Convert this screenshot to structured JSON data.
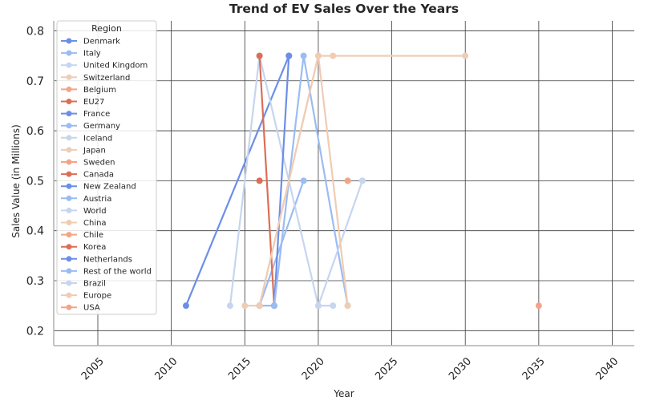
{
  "chart_data": {
    "type": "line",
    "title": "Trend of EV Sales Over the Years",
    "xlabel": "Year",
    "ylabel": "Sales Value (in Millions)",
    "xlim": [
      2002,
      2041.5
    ],
    "ylim": [
      0.17,
      0.82
    ],
    "x_ticks": [
      2005,
      2010,
      2015,
      2020,
      2025,
      2030,
      2035,
      2040
    ],
    "x_tick_labels": [
      "2005",
      "2010",
      "2015",
      "2020",
      "2025",
      "2030",
      "2035",
      "2040"
    ],
    "y_ticks": [
      0.2,
      0.3,
      0.4,
      0.5,
      0.6,
      0.7,
      0.8
    ],
    "y_tick_labels": [
      "0.2",
      "0.3",
      "0.4",
      "0.5",
      "0.6",
      "0.7",
      "0.8"
    ],
    "grid": true,
    "legend": {
      "title": "Region",
      "placement": "top-left"
    },
    "series": [
      {
        "name": "Denmark",
        "color": "#6c8ee8",
        "x": [
          2011,
          2018
        ],
        "y": [
          0.25,
          0.75
        ]
      },
      {
        "name": "Italy",
        "color": "#9bbcf3",
        "x": [
          2016,
          2019
        ],
        "y": [
          0.25,
          0.5
        ]
      },
      {
        "name": "United Kingdom",
        "color": "#c6d5f0",
        "x": [
          2014,
          2016,
          2020,
          2021
        ],
        "y": [
          0.25,
          0.75,
          0.25,
          0.25
        ]
      },
      {
        "name": "Switzerland",
        "color": "#edcdb8",
        "x": [
          2015,
          2016,
          2020,
          2030
        ],
        "y": [
          0.25,
          0.25,
          0.75,
          0.75
        ]
      },
      {
        "name": "Belgium",
        "color": "#f4a486",
        "x": [
          2022
        ],
        "y": [
          0.5
        ]
      },
      {
        "name": "EU27",
        "color": "#dd6e56",
        "x": [
          2016,
          2017
        ],
        "y": [
          0.75,
          0.25
        ]
      },
      {
        "name": "France",
        "color": "#6c8ee8",
        "x": [
          2017,
          2018
        ],
        "y": [
          0.25,
          0.75
        ]
      },
      {
        "name": "Germany",
        "color": "#9bbcf3",
        "x": [
          2016,
          2017,
          2019,
          2022
        ],
        "y": [
          0.25,
          0.25,
          0.75,
          0.25
        ]
      },
      {
        "name": "Iceland",
        "color": "#c6d5f0",
        "x": [
          2020,
          2023
        ],
        "y": [
          0.25,
          0.5
        ]
      },
      {
        "name": "Japan",
        "color": "#f0ccb3",
        "x": [
          2016,
          2020,
          2022
        ],
        "y": [
          0.25,
          0.75,
          0.25
        ]
      },
      {
        "name": "Sweden",
        "color": "#f4a486",
        "x": [
          2035
        ],
        "y": [
          0.25
        ]
      },
      {
        "name": "Canada",
        "color": "#dd6e56",
        "x": [
          2016
        ],
        "y": [
          0.5
        ]
      },
      {
        "name": "New Zealand",
        "color": "#6c8ee8",
        "x": [],
        "y": []
      },
      {
        "name": "Austria",
        "color": "#9bbcf3",
        "x": [],
        "y": []
      },
      {
        "name": "World",
        "color": "#c6d5f0",
        "x": [],
        "y": []
      },
      {
        "name": "China",
        "color": "#f0ccb3",
        "x": [
          2021
        ],
        "y": [
          0.75
        ]
      },
      {
        "name": "Chile",
        "color": "#f4a486",
        "x": [],
        "y": []
      },
      {
        "name": "Korea",
        "color": "#dd6e56",
        "x": [],
        "y": []
      },
      {
        "name": "Netherlands",
        "color": "#6c8ee8",
        "x": [],
        "y": []
      },
      {
        "name": "Rest of the world",
        "color": "#9bbcf3",
        "x": [],
        "y": []
      },
      {
        "name": "Brazil",
        "color": "#c6d5f0",
        "x": [],
        "y": []
      },
      {
        "name": "Europe",
        "color": "#f0ccb3",
        "x": [],
        "y": []
      },
      {
        "name": "USA",
        "color": "#f4a486",
        "x": [],
        "y": []
      }
    ]
  }
}
